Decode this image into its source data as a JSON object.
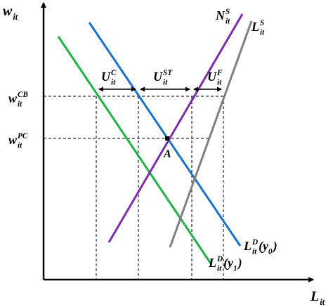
{
  "labels": {
    "y_axis": {
      "base": "w",
      "sub": "it"
    },
    "x_axis": {
      "base": "L",
      "sub": "it"
    },
    "w_cb": {
      "base": "w",
      "sup": "CB",
      "sub": "it"
    },
    "w_pc": {
      "base": "w",
      "sup": "PC",
      "sub": "it"
    },
    "n_supply": {
      "base": "N",
      "sup": "S",
      "sub": "it"
    },
    "l_supply": {
      "base": "L",
      "sup": "S",
      "sub": "it"
    },
    "u_c": {
      "base": "U",
      "sup": "C",
      "sub": "it"
    },
    "u_st": {
      "base": "U",
      "sup": "ST",
      "sub": "it"
    },
    "u_f": {
      "base": "U",
      "sup": "F",
      "sub": "it"
    },
    "l_demand_y0": {
      "base": "L",
      "sup": "D",
      "sub": "it",
      "tail": "(y",
      "tail_sub": "0",
      "tail_end": ")"
    },
    "l_demand_y1": {
      "base": "L",
      "sup": "D",
      "sub": "it",
      "tail": "(y",
      "tail_sub": "1",
      "tail_end": ")"
    },
    "point_a": {
      "base": "A"
    }
  }
}
